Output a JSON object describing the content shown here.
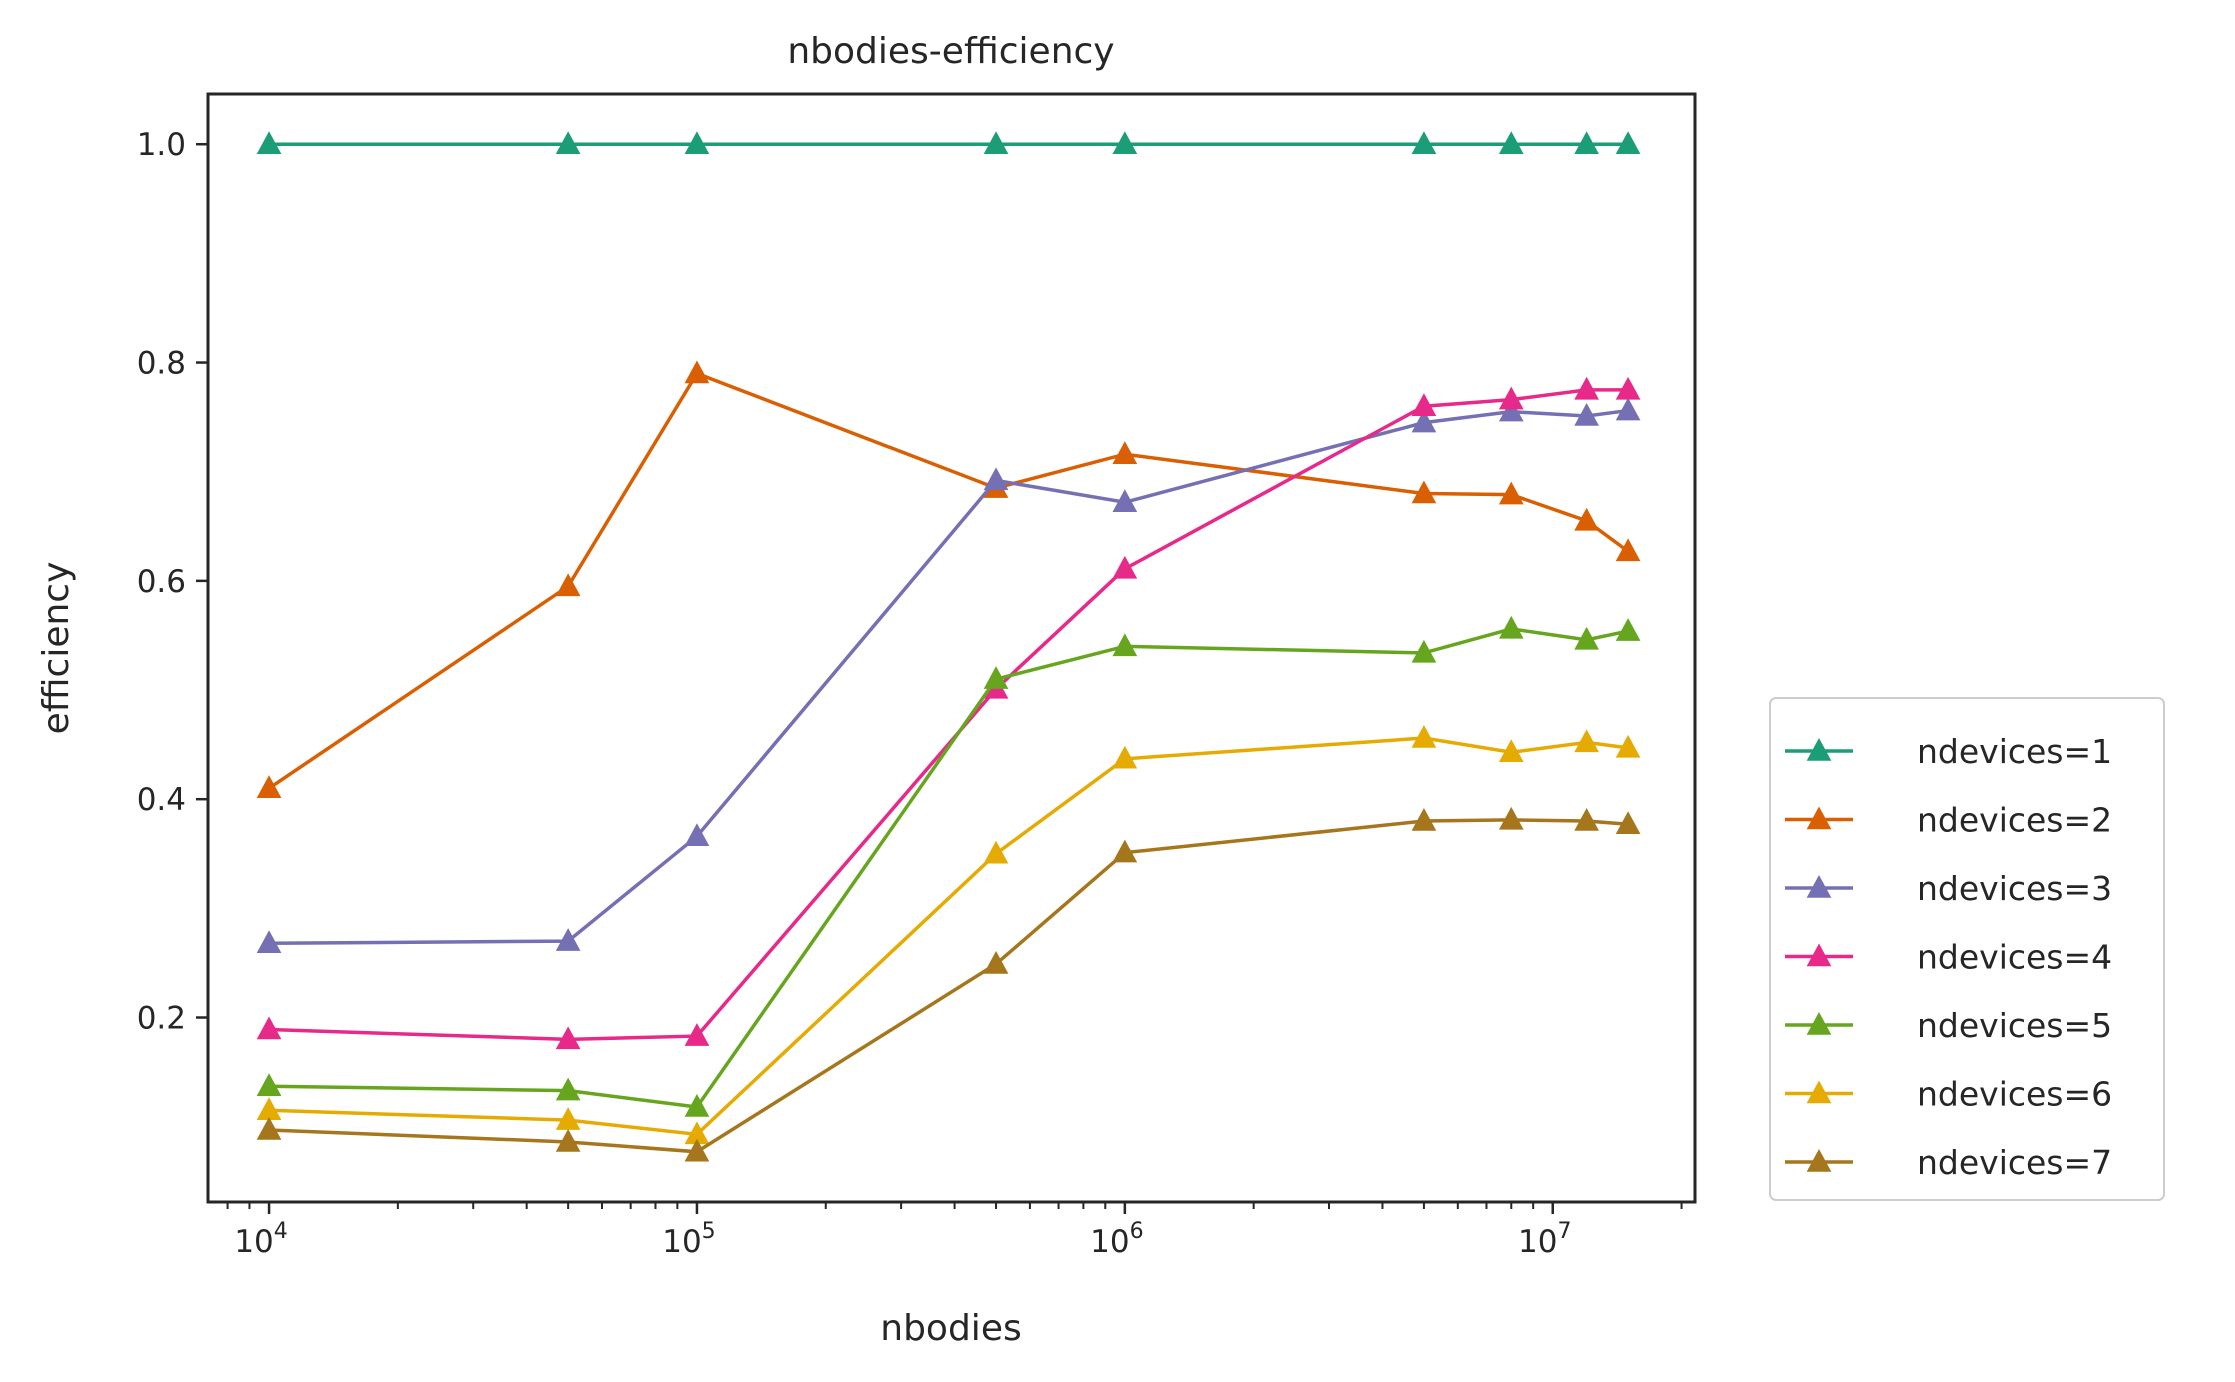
{
  "chart_data": {
    "type": "line",
    "title": "nbodies-efficiency",
    "xlabel": "nbodies",
    "ylabel": "efficiency",
    "xscale": "log",
    "xlim": [
      7200,
      21500000
    ],
    "ylim": [
      0.031,
      1.046
    ],
    "x": [
      10000,
      50000,
      100000,
      500000,
      1000000,
      5000000,
      8000000,
      12000000,
      15000000
    ],
    "x_ticks": [
      {
        "value": 10000,
        "base": "10",
        "exp": "4"
      },
      {
        "value": 100000,
        "base": "10",
        "exp": "5"
      },
      {
        "value": 1000000,
        "base": "10",
        "exp": "6"
      },
      {
        "value": 10000000,
        "base": "10",
        "exp": "7"
      }
    ],
    "y_ticks": [
      "0.2",
      "0.4",
      "0.6",
      "0.8",
      "1.0"
    ],
    "grid": false,
    "marker": "triangle-up",
    "legend_position": "outside-right-bottom",
    "series": [
      {
        "name": "ndevices=1",
        "color": "#1b9e77",
        "values": [
          1.0,
          1.0,
          1.0,
          1.0,
          1.0,
          1.0,
          1.0,
          1.0,
          1.0
        ]
      },
      {
        "name": "ndevices=2",
        "color": "#d95f02",
        "values": [
          0.41,
          0.595,
          0.79,
          0.685,
          0.716,
          0.68,
          0.679,
          0.655,
          0.627
        ]
      },
      {
        "name": "ndevices=3",
        "color": "#7570b3",
        "values": [
          0.268,
          0.27,
          0.366,
          0.692,
          0.672,
          0.745,
          0.755,
          0.751,
          0.756
        ]
      },
      {
        "name": "ndevices=4",
        "color": "#e7298a",
        "values": [
          0.189,
          0.18,
          0.183,
          0.501,
          0.611,
          0.76,
          0.766,
          0.775,
          0.775
        ]
      },
      {
        "name": "ndevices=5",
        "color": "#66a61e",
        "values": [
          0.137,
          0.133,
          0.118,
          0.51,
          0.54,
          0.534,
          0.556,
          0.546,
          0.554
        ]
      },
      {
        "name": "ndevices=6",
        "color": "#e6ab02",
        "values": [
          0.115,
          0.106,
          0.093,
          0.35,
          0.437,
          0.456,
          0.443,
          0.452,
          0.447
        ]
      },
      {
        "name": "ndevices=7",
        "color": "#a6761d",
        "values": [
          0.097,
          0.086,
          0.077,
          0.249,
          0.351,
          0.38,
          0.381,
          0.38,
          0.377
        ]
      }
    ]
  }
}
